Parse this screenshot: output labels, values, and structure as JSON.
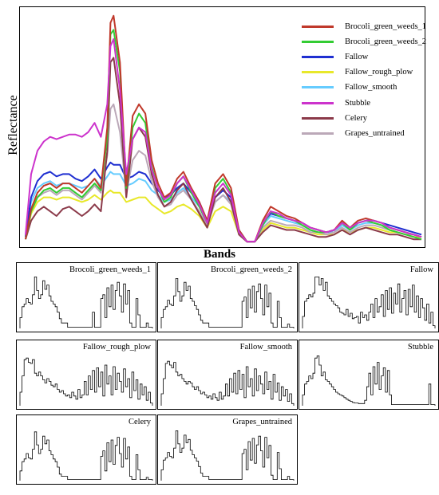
{
  "chart_data": [
    {
      "type": "line",
      "xlabel": "Bands",
      "ylabel": "Reflectance",
      "legend_position": "top-right",
      "grid": false,
      "x": [
        1,
        8,
        16,
        24,
        32,
        40,
        48,
        56,
        64,
        72,
        80,
        88,
        96,
        104,
        108,
        112,
        120,
        128,
        136,
        144,
        152,
        160,
        168,
        176,
        184,
        192,
        200,
        210,
        220,
        230,
        240,
        250,
        260,
        270,
        280,
        290,
        300,
        310,
        320,
        330,
        340,
        350,
        360,
        370,
        380,
        390,
        400,
        410,
        420,
        430,
        440,
        450,
        460,
        470,
        480,
        490,
        500
      ],
      "ylim": [
        0,
        1
      ],
      "series": [
        {
          "name": "Brocoli_green_weeds_1",
          "color": "#c0392b",
          "values": [
            0.02,
            0.15,
            0.22,
            0.25,
            0.26,
            0.24,
            0.26,
            0.26,
            0.24,
            0.22,
            0.25,
            0.28,
            0.24,
            0.5,
            0.95,
            0.98,
            0.78,
            0.25,
            0.55,
            0.6,
            0.56,
            0.36,
            0.26,
            0.2,
            0.22,
            0.28,
            0.31,
            0.24,
            0.18,
            0.1,
            0.26,
            0.3,
            0.24,
            0.06,
            0.01,
            0.01,
            0.1,
            0.16,
            0.14,
            0.12,
            0.11,
            0.09,
            0.07,
            0.06,
            0.05,
            0.06,
            0.1,
            0.07,
            0.1,
            0.11,
            0.1,
            0.09,
            0.07,
            0.06,
            0.05,
            0.04,
            0.03
          ]
        },
        {
          "name": "Brocoli_green_weeds_2",
          "color": "#33cc33",
          "values": [
            0.02,
            0.14,
            0.2,
            0.23,
            0.24,
            0.22,
            0.24,
            0.24,
            0.22,
            0.2,
            0.23,
            0.26,
            0.23,
            0.46,
            0.9,
            0.92,
            0.74,
            0.24,
            0.5,
            0.56,
            0.52,
            0.33,
            0.24,
            0.18,
            0.2,
            0.26,
            0.29,
            0.22,
            0.16,
            0.09,
            0.24,
            0.28,
            0.22,
            0.05,
            0.01,
            0.01,
            0.08,
            0.14,
            0.12,
            0.11,
            0.1,
            0.08,
            0.06,
            0.05,
            0.05,
            0.06,
            0.09,
            0.06,
            0.09,
            0.1,
            0.09,
            0.08,
            0.06,
            0.05,
            0.04,
            0.03,
            0.02
          ]
        },
        {
          "name": "Fallow",
          "color": "#1f2fd1",
          "values": [
            0.03,
            0.2,
            0.27,
            0.3,
            0.31,
            0.29,
            0.3,
            0.3,
            0.28,
            0.27,
            0.29,
            0.32,
            0.28,
            0.33,
            0.35,
            0.34,
            0.34,
            0.28,
            0.29,
            0.31,
            0.3,
            0.26,
            0.23,
            0.2,
            0.21,
            0.24,
            0.26,
            0.22,
            0.18,
            0.1,
            0.2,
            0.23,
            0.2,
            0.06,
            0.01,
            0.01,
            0.09,
            0.13,
            0.12,
            0.11,
            0.1,
            0.09,
            0.07,
            0.06,
            0.05,
            0.06,
            0.09,
            0.07,
            0.09,
            0.1,
            0.1,
            0.09,
            0.08,
            0.07,
            0.06,
            0.05,
            0.04
          ]
        },
        {
          "name": "Fallow_rough_plow",
          "color": "#e8e82a",
          "values": [
            0.02,
            0.13,
            0.18,
            0.2,
            0.2,
            0.19,
            0.2,
            0.2,
            0.19,
            0.18,
            0.19,
            0.21,
            0.19,
            0.22,
            0.23,
            0.22,
            0.22,
            0.18,
            0.19,
            0.2,
            0.2,
            0.17,
            0.15,
            0.13,
            0.14,
            0.16,
            0.17,
            0.15,
            0.12,
            0.07,
            0.14,
            0.16,
            0.14,
            0.04,
            0.01,
            0.01,
            0.06,
            0.09,
            0.08,
            0.07,
            0.07,
            0.06,
            0.05,
            0.04,
            0.04,
            0.04,
            0.06,
            0.05,
            0.06,
            0.07,
            0.07,
            0.06,
            0.05,
            0.05,
            0.04,
            0.03,
            0.03
          ]
        },
        {
          "name": "Fallow_smooth",
          "color": "#66ccff",
          "values": [
            0.02,
            0.18,
            0.24,
            0.26,
            0.27,
            0.25,
            0.26,
            0.26,
            0.25,
            0.24,
            0.25,
            0.28,
            0.25,
            0.29,
            0.31,
            0.3,
            0.3,
            0.25,
            0.26,
            0.28,
            0.27,
            0.23,
            0.21,
            0.18,
            0.19,
            0.22,
            0.24,
            0.2,
            0.16,
            0.09,
            0.18,
            0.21,
            0.18,
            0.05,
            0.01,
            0.01,
            0.08,
            0.12,
            0.11,
            0.1,
            0.09,
            0.08,
            0.06,
            0.05,
            0.05,
            0.05,
            0.08,
            0.06,
            0.08,
            0.09,
            0.09,
            0.08,
            0.07,
            0.06,
            0.05,
            0.04,
            0.03
          ]
        },
        {
          "name": "Stubble",
          "color": "#cc33cc",
          "values": [
            0.04,
            0.3,
            0.4,
            0.44,
            0.46,
            0.45,
            0.46,
            0.47,
            0.47,
            0.46,
            0.48,
            0.52,
            0.46,
            0.6,
            0.85,
            0.88,
            0.66,
            0.3,
            0.45,
            0.5,
            0.48,
            0.32,
            0.24,
            0.19,
            0.21,
            0.26,
            0.29,
            0.23,
            0.17,
            0.09,
            0.22,
            0.26,
            0.21,
            0.05,
            0.01,
            0.01,
            0.09,
            0.14,
            0.13,
            0.11,
            0.1,
            0.09,
            0.07,
            0.06,
            0.05,
            0.06,
            0.09,
            0.07,
            0.09,
            0.1,
            0.1,
            0.09,
            0.07,
            0.06,
            0.05,
            0.04,
            0.03
          ]
        },
        {
          "name": "Celery",
          "color": "#8b3a4a",
          "values": [
            0.02,
            0.1,
            0.14,
            0.16,
            0.14,
            0.12,
            0.15,
            0.16,
            0.14,
            0.12,
            0.14,
            0.17,
            0.14,
            0.4,
            0.78,
            0.8,
            0.6,
            0.2,
            0.45,
            0.5,
            0.46,
            0.3,
            0.21,
            0.16,
            0.18,
            0.23,
            0.26,
            0.19,
            0.13,
            0.07,
            0.2,
            0.24,
            0.18,
            0.04,
            0.01,
            0.01,
            0.05,
            0.08,
            0.07,
            0.06,
            0.06,
            0.05,
            0.04,
            0.03,
            0.03,
            0.04,
            0.06,
            0.04,
            0.06,
            0.07,
            0.06,
            0.05,
            0.04,
            0.04,
            0.03,
            0.02,
            0.02
          ]
        },
        {
          "name": "Grapes_untrained",
          "color": "#bba8b8",
          "values": [
            0.02,
            0.14,
            0.2,
            0.22,
            0.23,
            0.21,
            0.23,
            0.23,
            0.21,
            0.19,
            0.22,
            0.25,
            0.22,
            0.38,
            0.58,
            0.6,
            0.48,
            0.22,
            0.36,
            0.4,
            0.38,
            0.27,
            0.2,
            0.16,
            0.17,
            0.21,
            0.23,
            0.19,
            0.14,
            0.08,
            0.18,
            0.21,
            0.17,
            0.04,
            0.01,
            0.01,
            0.07,
            0.1,
            0.09,
            0.08,
            0.08,
            0.07,
            0.05,
            0.05,
            0.04,
            0.05,
            0.07,
            0.05,
            0.07,
            0.08,
            0.08,
            0.07,
            0.06,
            0.05,
            0.04,
            0.04,
            0.03
          ]
        }
      ]
    },
    {
      "type": "line",
      "panels": [
        {
          "title": "Brocoli_green_weeds_1",
          "values": [
            0.2,
            0.4,
            0.45,
            0.55,
            0.48,
            0.45,
            0.62,
            0.95,
            0.7,
            0.55,
            0.62,
            0.88,
            0.72,
            0.8,
            0.6,
            0.5,
            0.45,
            0.4,
            0.3,
            0.18,
            0.1,
            0.1,
            0.1,
            0.02,
            0.02,
            0.02,
            0.02,
            0.02,
            0.02,
            0.02,
            0.02,
            0.02,
            0.02,
            0.02,
            0.02,
            0.3,
            0.02,
            0.02,
            0.02,
            0.55,
            0.62,
            0.2,
            0.75,
            0.4,
            0.8,
            0.35,
            0.7,
            0.85,
            0.6,
            0.3,
            0.82,
            0.45,
            0.7,
            0.1,
            0.02,
            0.02,
            0.55,
            0.25,
            0.02,
            0.02,
            0.02,
            0.1,
            0.02,
            0.02
          ]
        },
        {
          "title": "Brocoli_green_weeds_2",
          "values": [
            0.2,
            0.35,
            0.4,
            0.52,
            0.45,
            0.42,
            0.6,
            0.92,
            0.68,
            0.5,
            0.6,
            0.85,
            0.7,
            0.78,
            0.55,
            0.5,
            0.42,
            0.35,
            0.25,
            0.15,
            0.1,
            0.1,
            0.1,
            0.02,
            0.02,
            0.02,
            0.02,
            0.02,
            0.02,
            0.02,
            0.02,
            0.02,
            0.02,
            0.02,
            0.02,
            0.02,
            0.02,
            0.02,
            0.02,
            0.5,
            0.58,
            0.2,
            0.72,
            0.38,
            0.78,
            0.3,
            0.68,
            0.82,
            0.55,
            0.25,
            0.8,
            0.4,
            0.65,
            0.1,
            0.02,
            0.02,
            0.5,
            0.2,
            0.02,
            0.02,
            0.02,
            0.08,
            0.02,
            0.02
          ]
        },
        {
          "title": "Fallow",
          "values": [
            0.22,
            0.5,
            0.55,
            0.62,
            0.58,
            0.65,
            0.95,
            0.95,
            0.8,
            0.92,
            0.7,
            0.85,
            0.6,
            0.55,
            0.5,
            0.45,
            0.42,
            0.38,
            0.3,
            0.28,
            0.25,
            0.35,
            0.22,
            0.28,
            0.18,
            0.2,
            0.22,
            0.1,
            0.3,
            0.2,
            0.25,
            0.15,
            0.3,
            0.45,
            0.2,
            0.55,
            0.3,
            0.4,
            0.62,
            0.22,
            0.7,
            0.35,
            0.75,
            0.28,
            0.65,
            0.45,
            0.82,
            0.3,
            0.55,
            0.7,
            0.25,
            0.72,
            0.4,
            0.8,
            0.3,
            0.6,
            0.2,
            0.55,
            0.38,
            0.15,
            0.45,
            0.1,
            0.3,
            0.05
          ]
        },
        {
          "title": "Fallow_rough_plow",
          "values": [
            0.25,
            0.55,
            0.85,
            0.88,
            0.8,
            0.78,
            0.85,
            0.6,
            0.55,
            0.62,
            0.55,
            0.48,
            0.42,
            0.5,
            0.45,
            0.38,
            0.35,
            0.4,
            0.3,
            0.25,
            0.28,
            0.22,
            0.18,
            0.2,
            0.15,
            0.25,
            0.18,
            0.12,
            0.3,
            0.15,
            0.2,
            0.45,
            0.2,
            0.55,
            0.3,
            0.65,
            0.25,
            0.7,
            0.35,
            0.62,
            0.18,
            0.75,
            0.4,
            0.55,
            0.2,
            0.72,
            0.3,
            0.6,
            0.45,
            0.25,
            0.68,
            0.35,
            0.5,
            0.15,
            0.62,
            0.28,
            0.48,
            0.12,
            0.4,
            0.2,
            0.35,
            0.1,
            0.25,
            0.05
          ]
        },
        {
          "title": "Fallow_smooth",
          "values": [
            0.22,
            0.5,
            0.78,
            0.82,
            0.75,
            0.7,
            0.8,
            0.62,
            0.55,
            0.58,
            0.5,
            0.45,
            0.4,
            0.45,
            0.42,
            0.35,
            0.3,
            0.35,
            0.28,
            0.22,
            0.25,
            0.2,
            0.15,
            0.18,
            0.12,
            0.22,
            0.15,
            0.1,
            0.25,
            0.12,
            0.18,
            0.4,
            0.18,
            0.5,
            0.25,
            0.6,
            0.22,
            0.65,
            0.3,
            0.58,
            0.15,
            0.72,
            0.35,
            0.5,
            0.18,
            0.68,
            0.28,
            0.55,
            0.4,
            0.22,
            0.62,
            0.3,
            0.45,
            0.12,
            0.58,
            0.25,
            0.42,
            0.1,
            0.35,
            0.18,
            0.3,
            0.08,
            0.22,
            0.04
          ]
        },
        {
          "title": "Stubble",
          "values": [
            0.2,
            0.4,
            0.45,
            0.55,
            0.5,
            0.6,
            0.88,
            0.92,
            0.75,
            0.55,
            0.62,
            0.48,
            0.45,
            0.4,
            0.35,
            0.3,
            0.25,
            0.22,
            0.2,
            0.18,
            0.15,
            0.12,
            0.1,
            0.08,
            0.06,
            0.05,
            0.05,
            0.04,
            0.04,
            0.04,
            0.1,
            0.35,
            0.6,
            0.2,
            0.72,
            0.4,
            0.8,
            0.3,
            0.55,
            0.7,
            0.25,
            0.65,
            0.2,
            0.02,
            0.02,
            0.02,
            0.02,
            0.02,
            0.02,
            0.02,
            0.02,
            0.02,
            0.02,
            0.02,
            0.02,
            0.02,
            0.02,
            0.02,
            0.02,
            0.02,
            0.02,
            0.4,
            0.02,
            0.02
          ]
        },
        {
          "title": "Celery",
          "values": [
            0.18,
            0.35,
            0.4,
            0.5,
            0.42,
            0.4,
            0.58,
            0.9,
            0.66,
            0.5,
            0.58,
            0.82,
            0.68,
            0.75,
            0.55,
            0.48,
            0.4,
            0.35,
            0.25,
            0.12,
            0.08,
            0.08,
            0.08,
            0.02,
            0.02,
            0.02,
            0.02,
            0.02,
            0.02,
            0.02,
            0.02,
            0.02,
            0.02,
            0.02,
            0.02,
            0.02,
            0.02,
            0.02,
            0.02,
            0.45,
            0.55,
            0.18,
            0.7,
            0.35,
            0.75,
            0.3,
            0.65,
            0.8,
            0.5,
            0.25,
            0.78,
            0.4,
            0.62,
            0.08,
            0.02,
            0.02,
            0.48,
            0.2,
            0.02,
            0.02,
            0.02,
            0.06,
            0.02,
            0.02
          ]
        },
        {
          "title": "Grapes_untrained",
          "values": [
            0.2,
            0.38,
            0.42,
            0.52,
            0.45,
            0.42,
            0.6,
            0.92,
            0.68,
            0.52,
            0.6,
            0.84,
            0.7,
            0.76,
            0.56,
            0.48,
            0.42,
            0.36,
            0.26,
            0.14,
            0.08,
            0.08,
            0.08,
            0.02,
            0.02,
            0.02,
            0.02,
            0.02,
            0.02,
            0.02,
            0.02,
            0.02,
            0.02,
            0.02,
            0.02,
            0.02,
            0.02,
            0.02,
            0.02,
            0.5,
            0.58,
            0.2,
            0.72,
            0.38,
            0.78,
            0.32,
            0.66,
            0.82,
            0.55,
            0.25,
            0.8,
            0.42,
            0.65,
            0.1,
            0.02,
            0.02,
            0.52,
            0.22,
            0.02,
            0.02,
            0.02,
            0.08,
            0.02,
            0.02
          ]
        }
      ]
    }
  ]
}
